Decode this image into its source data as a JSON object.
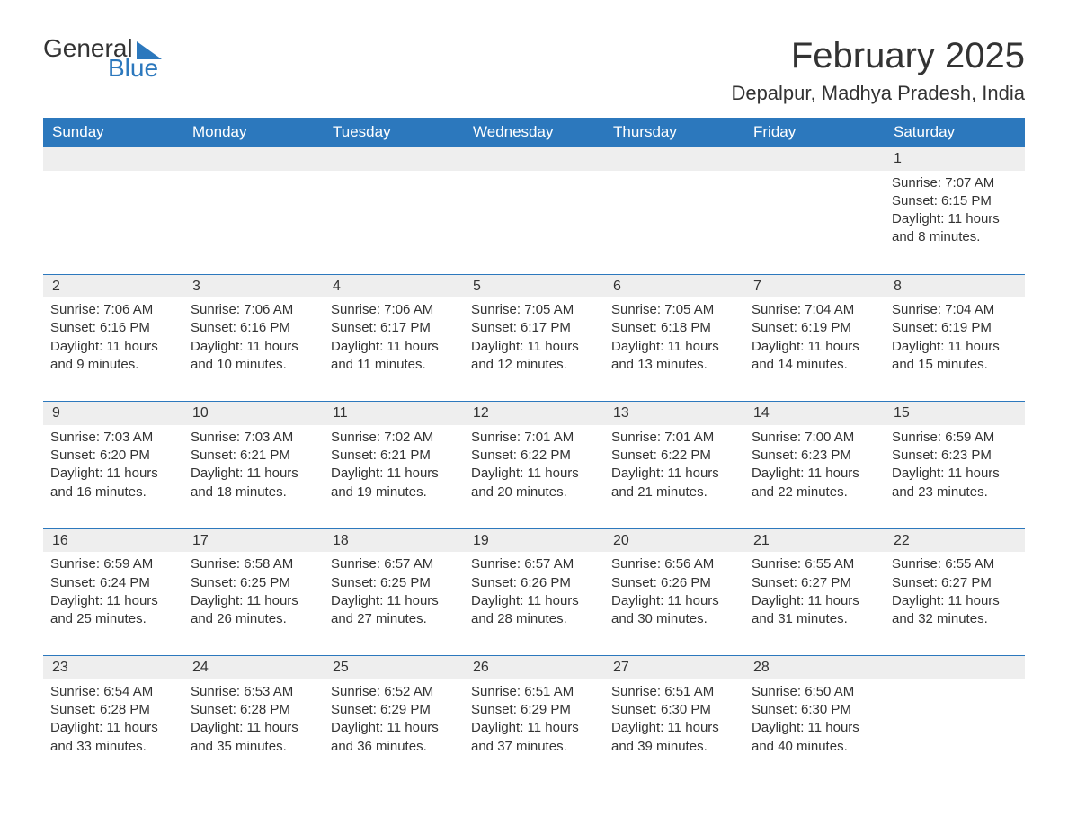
{
  "brand": {
    "word1": "General",
    "word2": "Blue",
    "accent_color": "#2c78bd"
  },
  "title": "February 2025",
  "location": "Depalpur, Madhya Pradesh, India",
  "colors": {
    "header_bg": "#2c78bd",
    "header_text": "#ffffff",
    "band_bg": "#eeeeee",
    "rule": "#2c78bd",
    "body_text": "#333333",
    "page_bg": "#ffffff"
  },
  "typography": {
    "title_fontsize": 40,
    "location_fontsize": 22,
    "dayhead_fontsize": 17,
    "cell_fontsize": 15
  },
  "day_headers": [
    "Sunday",
    "Monday",
    "Tuesday",
    "Wednesday",
    "Thursday",
    "Friday",
    "Saturday"
  ],
  "weeks": [
    [
      {
        "day": ""
      },
      {
        "day": ""
      },
      {
        "day": ""
      },
      {
        "day": ""
      },
      {
        "day": ""
      },
      {
        "day": ""
      },
      {
        "day": "1",
        "sunrise": "Sunrise: 7:07 AM",
        "sunset": "Sunset: 6:15 PM",
        "daylight": "Daylight: 11 hours and 8 minutes."
      }
    ],
    [
      {
        "day": "2",
        "sunrise": "Sunrise: 7:06 AM",
        "sunset": "Sunset: 6:16 PM",
        "daylight": "Daylight: 11 hours and 9 minutes."
      },
      {
        "day": "3",
        "sunrise": "Sunrise: 7:06 AM",
        "sunset": "Sunset: 6:16 PM",
        "daylight": "Daylight: 11 hours and 10 minutes."
      },
      {
        "day": "4",
        "sunrise": "Sunrise: 7:06 AM",
        "sunset": "Sunset: 6:17 PM",
        "daylight": "Daylight: 11 hours and 11 minutes."
      },
      {
        "day": "5",
        "sunrise": "Sunrise: 7:05 AM",
        "sunset": "Sunset: 6:17 PM",
        "daylight": "Daylight: 11 hours and 12 minutes."
      },
      {
        "day": "6",
        "sunrise": "Sunrise: 7:05 AM",
        "sunset": "Sunset: 6:18 PM",
        "daylight": "Daylight: 11 hours and 13 minutes."
      },
      {
        "day": "7",
        "sunrise": "Sunrise: 7:04 AM",
        "sunset": "Sunset: 6:19 PM",
        "daylight": "Daylight: 11 hours and 14 minutes."
      },
      {
        "day": "8",
        "sunrise": "Sunrise: 7:04 AM",
        "sunset": "Sunset: 6:19 PM",
        "daylight": "Daylight: 11 hours and 15 minutes."
      }
    ],
    [
      {
        "day": "9",
        "sunrise": "Sunrise: 7:03 AM",
        "sunset": "Sunset: 6:20 PM",
        "daylight": "Daylight: 11 hours and 16 minutes."
      },
      {
        "day": "10",
        "sunrise": "Sunrise: 7:03 AM",
        "sunset": "Sunset: 6:21 PM",
        "daylight": "Daylight: 11 hours and 18 minutes."
      },
      {
        "day": "11",
        "sunrise": "Sunrise: 7:02 AM",
        "sunset": "Sunset: 6:21 PM",
        "daylight": "Daylight: 11 hours and 19 minutes."
      },
      {
        "day": "12",
        "sunrise": "Sunrise: 7:01 AM",
        "sunset": "Sunset: 6:22 PM",
        "daylight": "Daylight: 11 hours and 20 minutes."
      },
      {
        "day": "13",
        "sunrise": "Sunrise: 7:01 AM",
        "sunset": "Sunset: 6:22 PM",
        "daylight": "Daylight: 11 hours and 21 minutes."
      },
      {
        "day": "14",
        "sunrise": "Sunrise: 7:00 AM",
        "sunset": "Sunset: 6:23 PM",
        "daylight": "Daylight: 11 hours and 22 minutes."
      },
      {
        "day": "15",
        "sunrise": "Sunrise: 6:59 AM",
        "sunset": "Sunset: 6:23 PM",
        "daylight": "Daylight: 11 hours and 23 minutes."
      }
    ],
    [
      {
        "day": "16",
        "sunrise": "Sunrise: 6:59 AM",
        "sunset": "Sunset: 6:24 PM",
        "daylight": "Daylight: 11 hours and 25 minutes."
      },
      {
        "day": "17",
        "sunrise": "Sunrise: 6:58 AM",
        "sunset": "Sunset: 6:25 PM",
        "daylight": "Daylight: 11 hours and 26 minutes."
      },
      {
        "day": "18",
        "sunrise": "Sunrise: 6:57 AM",
        "sunset": "Sunset: 6:25 PM",
        "daylight": "Daylight: 11 hours and 27 minutes."
      },
      {
        "day": "19",
        "sunrise": "Sunrise: 6:57 AM",
        "sunset": "Sunset: 6:26 PM",
        "daylight": "Daylight: 11 hours and 28 minutes."
      },
      {
        "day": "20",
        "sunrise": "Sunrise: 6:56 AM",
        "sunset": "Sunset: 6:26 PM",
        "daylight": "Daylight: 11 hours and 30 minutes."
      },
      {
        "day": "21",
        "sunrise": "Sunrise: 6:55 AM",
        "sunset": "Sunset: 6:27 PM",
        "daylight": "Daylight: 11 hours and 31 minutes."
      },
      {
        "day": "22",
        "sunrise": "Sunrise: 6:55 AM",
        "sunset": "Sunset: 6:27 PM",
        "daylight": "Daylight: 11 hours and 32 minutes."
      }
    ],
    [
      {
        "day": "23",
        "sunrise": "Sunrise: 6:54 AM",
        "sunset": "Sunset: 6:28 PM",
        "daylight": "Daylight: 11 hours and 33 minutes."
      },
      {
        "day": "24",
        "sunrise": "Sunrise: 6:53 AM",
        "sunset": "Sunset: 6:28 PM",
        "daylight": "Daylight: 11 hours and 35 minutes."
      },
      {
        "day": "25",
        "sunrise": "Sunrise: 6:52 AM",
        "sunset": "Sunset: 6:29 PM",
        "daylight": "Daylight: 11 hours and 36 minutes."
      },
      {
        "day": "26",
        "sunrise": "Sunrise: 6:51 AM",
        "sunset": "Sunset: 6:29 PM",
        "daylight": "Daylight: 11 hours and 37 minutes."
      },
      {
        "day": "27",
        "sunrise": "Sunrise: 6:51 AM",
        "sunset": "Sunset: 6:30 PM",
        "daylight": "Daylight: 11 hours and 39 minutes."
      },
      {
        "day": "28",
        "sunrise": "Sunrise: 6:50 AM",
        "sunset": "Sunset: 6:30 PM",
        "daylight": "Daylight: 11 hours and 40 minutes."
      },
      {
        "day": ""
      }
    ]
  ]
}
